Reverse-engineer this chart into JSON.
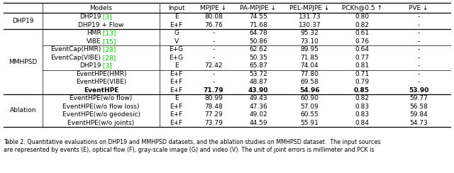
{
  "col_headers": [
    "Models",
    "Input",
    "MPJPE ↓",
    "PA-MPJPE ↓",
    "PEL-MPJPE ↓",
    "PCKh@0.5 ↑",
    "PVE ↓"
  ],
  "row_groups": [
    {
      "group_label": "DHP19",
      "rows": [
        {
          "model": "DHP19",
          "ref": "3",
          "input": "E",
          "mpjpe": "80.08",
          "pa": "74.55",
          "pel": "131.73",
          "pck": "0.80",
          "pve": "-",
          "bold": false
        },
        {
          "model": "DHP19 + Flow",
          "ref": "",
          "input": "E+F",
          "mpjpe": "76.76",
          "pa": "71.68",
          "pel": "130.37",
          "pck": "0.82",
          "pve": "-",
          "bold": false
        }
      ]
    },
    {
      "group_label": "MMHPSD",
      "subgroups": [
        {
          "rows": [
            {
              "model": "HMR",
              "ref": "13",
              "input": "G",
              "mpjpe": "-",
              "pa": "64.78",
              "pel": "95.32",
              "pck": "0.61",
              "pve": "-",
              "bold": false
            },
            {
              "model": "VIBE",
              "ref": "15",
              "input": "V",
              "mpjpe": "-",
              "pa": "50.86",
              "pel": "73.10",
              "pck": "0.76",
              "pve": "-",
              "bold": false
            }
          ]
        },
        {
          "rows": [
            {
              "model": "EventCap(HMR)",
              "ref": "28",
              "input": "E+G",
              "mpjpe": "-",
              "pa": "62.62",
              "pel": "89.95",
              "pck": "0.64",
              "pve": "-",
              "bold": false
            },
            {
              "model": "EventCap(VIBE)",
              "ref": "28",
              "input": "E+G",
              "mpjpe": "-",
              "pa": "50.35",
              "pel": "71.85",
              "pck": "0.77",
              "pve": "-",
              "bold": false
            },
            {
              "model": "DHP19",
              "ref": "3",
              "input": "E",
              "mpjpe": "72.42",
              "pa": "65.87",
              "pel": "74.04",
              "pck": "0.81",
              "pve": "-",
              "bold": false
            }
          ]
        },
        {
          "rows": [
            {
              "model": "EventHPE(HMR)",
              "ref": "",
              "input": "E+F",
              "mpjpe": "-",
              "pa": "53.72",
              "pel": "77.80",
              "pck": "0.71",
              "pve": "-",
              "bold": false
            },
            {
              "model": "EventHPE(VIBE)",
              "ref": "",
              "input": "E+F",
              "mpjpe": "-",
              "pa": "48.87",
              "pel": "69.58",
              "pck": "0.79",
              "pve": "-",
              "bold": false
            },
            {
              "model": "EventHPE",
              "ref": "",
              "input": "E+F",
              "mpjpe": "71.79",
              "pa": "43.90",
              "pel": "54.96",
              "pck": "0.85",
              "pve": "53.90",
              "bold": true
            }
          ]
        }
      ]
    },
    {
      "group_label": "Ablation",
      "rows": [
        {
          "model": "EventHPE(w/o flow)",
          "ref": "",
          "input": "E",
          "mpjpe": "80.99",
          "pa": "49.43",
          "pel": "60.90",
          "pck": "0.82",
          "pve": "59.77",
          "bold": false
        },
        {
          "model": "EventHPE(w/o flow loss)",
          "ref": "",
          "input": "E+F",
          "mpjpe": "78.48",
          "pa": "47.36",
          "pel": "57.09",
          "pck": "0.83",
          "pve": "56.58",
          "bold": false
        },
        {
          "model": "EventHPE(w/o geodesic)",
          "ref": "",
          "input": "E+F",
          "mpjpe": "77.29",
          "pa": "49.02",
          "pel": "60.55",
          "pck": "0.83",
          "pve": "59.84",
          "bold": false
        },
        {
          "model": "EventHPE(w/o joints)",
          "ref": "",
          "input": "E+F",
          "mpjpe": "73.79",
          "pa": "44.59",
          "pel": "55.91",
          "pck": "0.84",
          "pve": "54.73",
          "bold": false
        }
      ]
    }
  ],
  "caption_line1": "Table 2. Quantitative evaluations on DHP19 and MMHPSD datasets, and the ablation studies on MMHPSD dataset.  The input sources",
  "caption_line2": "are represented by events (E), optical flow (F), gray-scale image (G) and video (V). The unit of joint errors is millimeter and PCK is",
  "ref_color": "#00cc00",
  "bg_color": "#ffffff",
  "line_color": "#000000",
  "fontsize": 6.5,
  "caption_fontsize": 5.8
}
